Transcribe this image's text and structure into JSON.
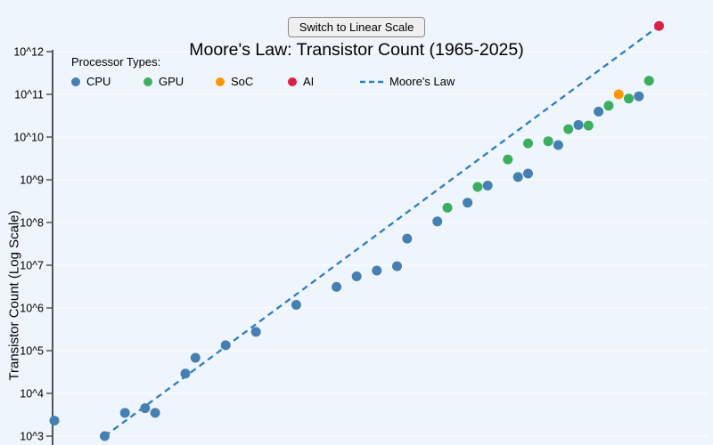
{
  "toolbar": {
    "button_label": "Switch to Linear Scale"
  },
  "title": "Moore's Law: Transistor Count (1965-2025)",
  "legend": {
    "heading": "Processor Types:",
    "items": [
      {
        "label": "CPU",
        "color": "#4680b2",
        "marker": "dot"
      },
      {
        "label": "GPU",
        "color": "#3cae60",
        "marker": "dot"
      },
      {
        "label": "SoC",
        "color": "#ff9800",
        "marker": "dot"
      },
      {
        "label": "AI",
        "color": "#dc1f47",
        "marker": "dot"
      },
      {
        "label": "Moore's Law",
        "color": "#2e7cc3",
        "marker": "dashed-line"
      }
    ]
  },
  "y_axis": {
    "label": "Transistor Count (Log Scale)",
    "tick_labels": [
      "10^3",
      "10^4",
      "10^5",
      "10^6",
      "10^7",
      "10^8",
      "10^9",
      "10^10",
      "10^11",
      "10^12"
    ]
  },
  "chart_data": {
    "type": "scatter",
    "title": "Moore's Law: Transistor Count (1965-2025)",
    "xlabel": "",
    "ylabel": "Transistor Count (Log Scale)",
    "x_range": [
      1965,
      2030
    ],
    "y_scale": "log",
    "y_range_exponents": [
      3,
      12
    ],
    "grid": "horizontal",
    "legend_position": "top-left",
    "series": [
      {
        "name": "CPU",
        "color": "#4680b2",
        "points": [
          [
            1965,
            2300
          ],
          [
            1970,
            1000
          ],
          [
            1972,
            3500
          ],
          [
            1974,
            4500
          ],
          [
            1975,
            3500
          ],
          [
            1978,
            29000
          ],
          [
            1979,
            68000
          ],
          [
            1982,
            134000
          ],
          [
            1985,
            275000
          ],
          [
            1989,
            1180000
          ],
          [
            1993,
            3100000
          ],
          [
            1995,
            5500000
          ],
          [
            1997,
            7500000
          ],
          [
            1999,
            9500000
          ],
          [
            2000,
            42000000
          ],
          [
            2003,
            106000000
          ],
          [
            2006,
            291000000
          ],
          [
            2008,
            731000000
          ],
          [
            2011,
            1160000000
          ],
          [
            2012,
            1400000000
          ],
          [
            2015,
            6500000000
          ],
          [
            2017,
            19200000000
          ],
          [
            2019,
            39500000000
          ],
          [
            2023,
            90000000000
          ]
        ]
      },
      {
        "name": "GPU",
        "color": "#3cae60",
        "points": [
          [
            2004,
            222000000
          ],
          [
            2007,
            681000000
          ],
          [
            2010,
            3000000000
          ],
          [
            2012,
            7100000000
          ],
          [
            2014,
            8000000000
          ],
          [
            2016,
            15300000000
          ],
          [
            2018,
            18600000000
          ],
          [
            2020,
            54200000000
          ],
          [
            2022,
            80000000000
          ],
          [
            2024,
            208000000000
          ]
        ]
      },
      {
        "name": "SoC",
        "color": "#ff9800",
        "points": [
          [
            2021,
            100000000000
          ]
        ]
      },
      {
        "name": "AI",
        "color": "#dc1f47",
        "points": [
          [
            2025,
            4000000000000
          ]
        ]
      }
    ],
    "moore_line": {
      "name": "Moore's Law",
      "color": "#2e7cc3",
      "style": "dashed",
      "points": [
        [
          1970,
          1000
        ],
        [
          2025,
          4000000000000
        ]
      ]
    }
  }
}
